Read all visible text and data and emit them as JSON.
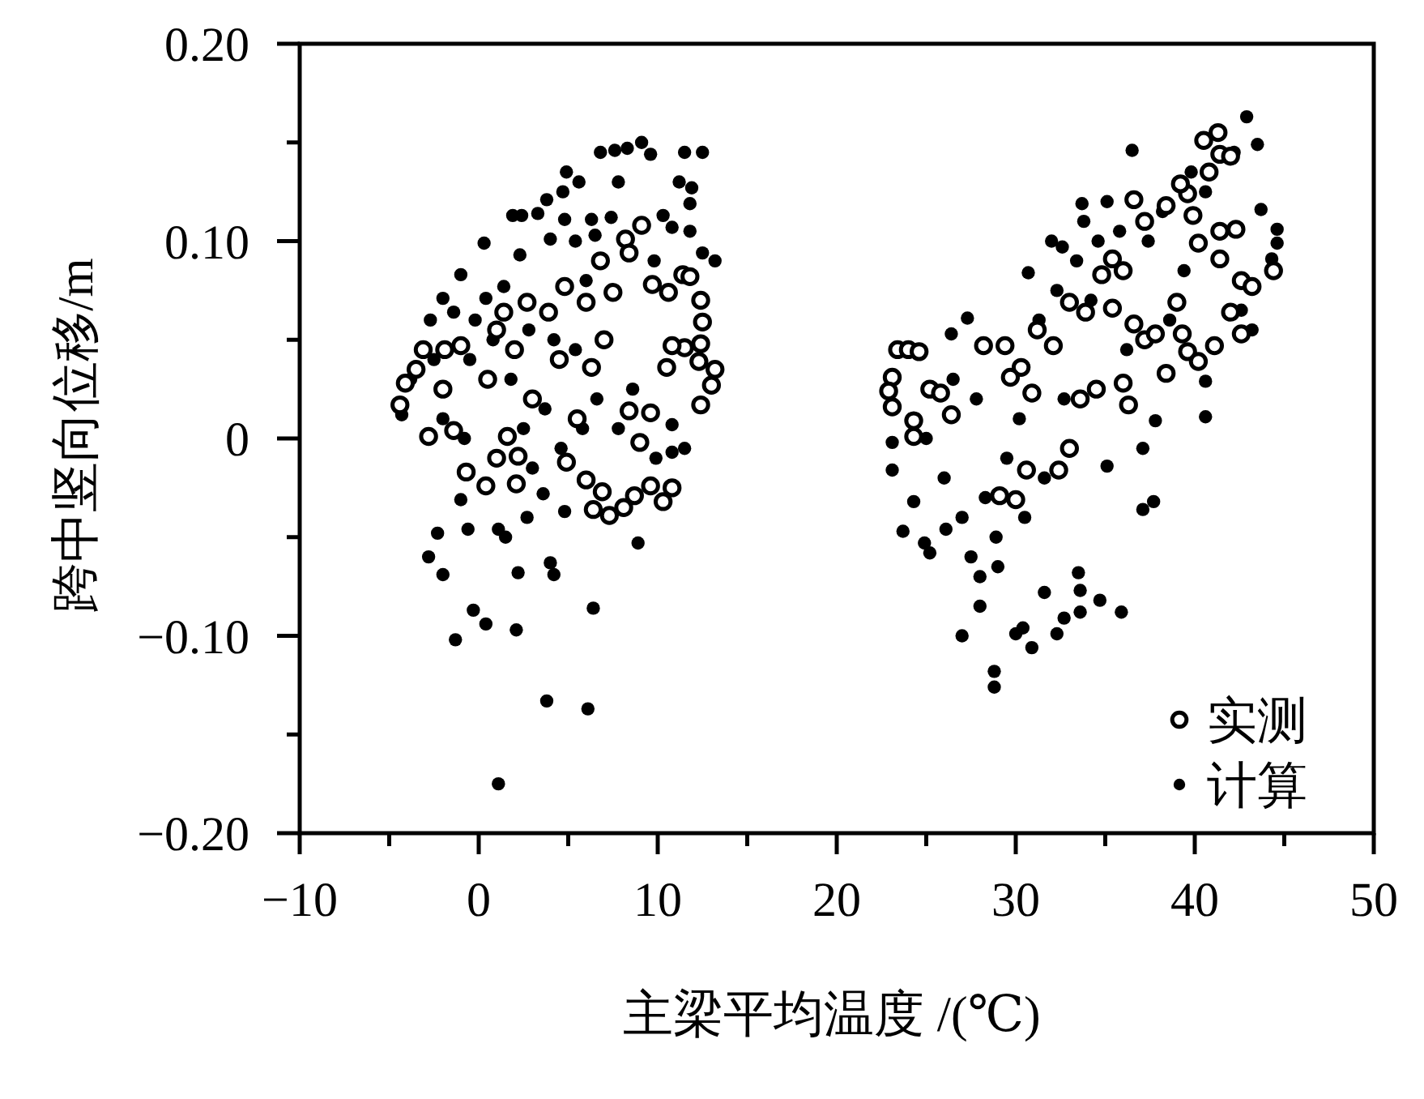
{
  "chart_data": {
    "type": "scatter",
    "xlabel": "主梁平均温度 /(℃)",
    "ylabel": "跨中竖向位移/m",
    "xlim": [
      -10,
      50
    ],
    "ylim": [
      -0.2,
      0.2
    ],
    "xticks": [
      {
        "value": -10,
        "label": "−10"
      },
      {
        "value": -5,
        "label": null
      },
      0,
      {
        "value": 5,
        "label": null
      },
      10,
      {
        "value": 15,
        "label": null
      },
      20,
      {
        "value": 25,
        "label": null
      },
      30,
      {
        "value": 35,
        "label": null
      },
      40,
      {
        "value": 45,
        "label": null
      },
      50
    ],
    "yticks": [
      {
        "value": -0.2,
        "label": "−0.20"
      },
      {
        "value": -0.15,
        "label": null
      },
      {
        "value": -0.1,
        "label": "−0.10"
      },
      {
        "value": -0.05,
        "label": null
      },
      0,
      {
        "value": 0.05,
        "label": null
      },
      {
        "value": 0.1,
        "label": "0.10"
      },
      {
        "value": 0.15,
        "label": null
      },
      {
        "value": 0.2,
        "label": "0.20"
      }
    ],
    "legend": "bottom right",
    "marker": "circle",
    "series": [
      {
        "name": "实测",
        "color": "#000000",
        "x": [
          9.1,
          8.2,
          8.4,
          6.8,
          9.7,
          11.4,
          11.8,
          10.6,
          12.4,
          12.5,
          12.4,
          11.5,
          10.8,
          12.3,
          13.2,
          13.0,
          12.4,
          10.5,
          7.5,
          6.0,
          4.8,
          3.9,
          2.7,
          1.4,
          -1.0,
          -1.9,
          -3.1,
          -4.1,
          -4.4,
          -2.8,
          -1.4,
          -0.7,
          0.4,
          2.1,
          2.2,
          1.0,
          4.9,
          6.0,
          6.4,
          7.3,
          8.1,
          8.7,
          9.6,
          10.8,
          10.3,
          6.9,
          9.0,
          9.6,
          8.4,
          6.3,
          1.6,
          0.5,
          2.0,
          3.0,
          4.5,
          5.5,
          7.0,
          -2.0,
          1.0,
          -3.5,
          23.4,
          24.0,
          24.6,
          23.1,
          22.9,
          23.1,
          24.3,
          24.3,
          25.2,
          30.6,
          30.0,
          29.1,
          33.0,
          32.4,
          33.6,
          34.5,
          36.0,
          36.3,
          37.2,
          38.4,
          39.6,
          40.2,
          39.3,
          41.1,
          42.6,
          42.0,
          42.6,
          43.2,
          44.4,
          41.4,
          40.2,
          41.4,
          42.3,
          39.9,
          39.6,
          41.3,
          40.5,
          41.4,
          40.8,
          38.4,
          37.2,
          36.6,
          35.4,
          36.0,
          34.8,
          33.9,
          33.0,
          35.4,
          36.6,
          37.8,
          31.2,
          32.1,
          29.4,
          28.2,
          30.3,
          29.7,
          30.9,
          25.8,
          26.4,
          39.2,
          42.0,
          39.0
        ],
        "values": [
          0.108,
          0.101,
          0.094,
          0.09,
          0.078,
          0.083,
          0.082,
          0.074,
          0.07,
          0.059,
          0.048,
          0.046,
          0.047,
          0.039,
          0.035,
          0.027,
          0.017,
          0.036,
          0.074,
          0.069,
          0.077,
          0.064,
          0.069,
          0.064,
          0.047,
          0.045,
          0.045,
          0.028,
          0.017,
          0.001,
          0.004,
          -0.017,
          -0.024,
          -0.023,
          -0.009,
          -0.01,
          -0.012,
          -0.021,
          -0.036,
          -0.039,
          -0.035,
          -0.029,
          -0.024,
          -0.025,
          -0.032,
          -0.027,
          -0.002,
          0.013,
          0.014,
          0.036,
          0.001,
          0.03,
          0.045,
          0.02,
          0.04,
          0.01,
          0.05,
          0.025,
          0.055,
          0.035,
          0.045,
          0.045,
          0.044,
          0.031,
          0.024,
          0.016,
          0.009,
          0.001,
          0.025,
          -0.016,
          -0.031,
          -0.029,
          -0.005,
          -0.016,
          0.02,
          0.025,
          0.028,
          0.017,
          0.05,
          0.033,
          0.044,
          0.039,
          0.053,
          0.047,
          0.053,
          0.064,
          0.08,
          0.077,
          0.085,
          0.091,
          0.099,
          0.105,
          0.106,
          0.113,
          0.124,
          0.155,
          0.151,
          0.144,
          0.135,
          0.118,
          0.11,
          0.121,
          0.091,
          0.085,
          0.083,
          0.064,
          0.069,
          0.066,
          0.058,
          0.053,
          0.055,
          0.047,
          0.047,
          0.047,
          0.036,
          0.031,
          0.023,
          0.023,
          0.012,
          0.129,
          0.143,
          0.069
        ]
      },
      {
        "name": "计算",
        "color": "#000000",
        "x": [
          1.1,
          3.8,
          6.1,
          -1.3,
          -0.3,
          0.4,
          2.1,
          6.4,
          -2.8,
          -2.0,
          2.2,
          4.0,
          4.2,
          -2.3,
          -0.6,
          1.1,
          1.5,
          8.9,
          2.7,
          4.8,
          -1.0,
          3.6,
          6.8,
          7.6,
          8.3,
          9.1,
          9.6,
          11.5,
          12.5,
          4.9,
          5.6,
          7.8,
          11.2,
          11.9,
          4.7,
          11.8,
          3.8,
          1.9,
          2.4,
          3.3,
          4.8,
          6.3,
          7.4,
          10.3,
          10.8,
          11.8,
          0.3,
          4.0,
          5.4,
          6.5,
          2.3,
          9.8,
          12.5,
          13.2,
          -1.0,
          1.4,
          -2.0,
          0.4,
          -2.7,
          -1.4,
          -0.2,
          10.8,
          11.5,
          9.9,
          10.8,
          -4.3,
          -3.8,
          -2.5,
          -2.0,
          -0.8,
          -0.5,
          0.8,
          1.8,
          2.5,
          2.8,
          3.7,
          4.2,
          4.6,
          5.4,
          5.8,
          6.6,
          7.8,
          8.6,
          3.0,
          6.0,
          28.8,
          28.8,
          27.0,
          30.0,
          30.4,
          30.9,
          32.3,
          31.6,
          32.7,
          33.6,
          33.6,
          34.7,
          35.9,
          33.5,
          37.1,
          37.7,
          23.7,
          24.9,
          25.2,
          26.1,
          24.3,
          23.1,
          23.1,
          36.5,
          35.1,
          33.7,
          33.8,
          32.0,
          32.6,
          27.3,
          26.4,
          30.7,
          40.6,
          40.6,
          37.8,
          37.1,
          35.1,
          44.6,
          44.6,
          44.3,
          43.7,
          42.9,
          43.5,
          43.2,
          42.6,
          25.0,
          26.0,
          26.5,
          27.0,
          27.5,
          27.8,
          28.0,
          28.3,
          28.9,
          29.5,
          30.2,
          30.5,
          31.3,
          31.6,
          32.3,
          32.7,
          33.4,
          34.2,
          34.6,
          35.8,
          36.2,
          37.4,
          38.2,
          38.6,
          39.4,
          39.8,
          40.6,
          42.2,
          28.0,
          29.0
        ],
        "values": [
          -0.175,
          -0.133,
          -0.137,
          -0.102,
          -0.087,
          -0.094,
          -0.097,
          -0.086,
          -0.06,
          -0.069,
          -0.068,
          -0.063,
          -0.069,
          -0.048,
          -0.046,
          -0.046,
          -0.05,
          -0.053,
          -0.04,
          -0.037,
          -0.031,
          -0.028,
          0.145,
          0.146,
          0.147,
          0.15,
          0.144,
          0.145,
          0.145,
          0.135,
          0.13,
          0.13,
          0.13,
          0.127,
          0.125,
          0.119,
          0.121,
          0.113,
          0.113,
          0.114,
          0.111,
          0.111,
          0.112,
          0.113,
          0.107,
          0.105,
          0.099,
          0.101,
          0.1,
          0.103,
          0.093,
          0.09,
          0.094,
          0.09,
          0.083,
          0.077,
          0.071,
          0.071,
          0.06,
          0.064,
          0.06,
          -0.007,
          -0.005,
          -0.01,
          0.007,
          0.012,
          0.03,
          0.04,
          0.01,
          0.0,
          0.04,
          0.05,
          0.03,
          0.005,
          0.055,
          0.015,
          0.05,
          -0.005,
          0.045,
          0.005,
          0.02,
          0.005,
          0.025,
          -0.015,
          0.08,
          -0.126,
          -0.118,
          -0.1,
          -0.099,
          -0.096,
          -0.106,
          -0.099,
          -0.078,
          -0.091,
          -0.088,
          -0.077,
          -0.082,
          -0.088,
          -0.068,
          -0.036,
          -0.032,
          -0.047,
          -0.053,
          -0.058,
          -0.046,
          -0.032,
          -0.016,
          -0.002,
          0.146,
          0.12,
          0.119,
          0.11,
          0.1,
          0.097,
          0.061,
          0.053,
          0.084,
          0.029,
          0.011,
          0.009,
          -0.005,
          -0.014,
          0.106,
          0.099,
          0.091,
          0.116,
          0.163,
          0.149,
          0.055,
          0.065,
          0.0,
          -0.02,
          0.03,
          -0.04,
          -0.06,
          0.02,
          -0.07,
          -0.03,
          -0.05,
          -0.01,
          0.01,
          -0.04,
          0.06,
          -0.02,
          0.075,
          0.02,
          0.09,
          0.07,
          0.1,
          0.105,
          0.045,
          0.1,
          0.115,
          0.06,
          0.085,
          0.135,
          0.125,
          0.145,
          -0.085,
          -0.065
        ]
      }
    ]
  }
}
